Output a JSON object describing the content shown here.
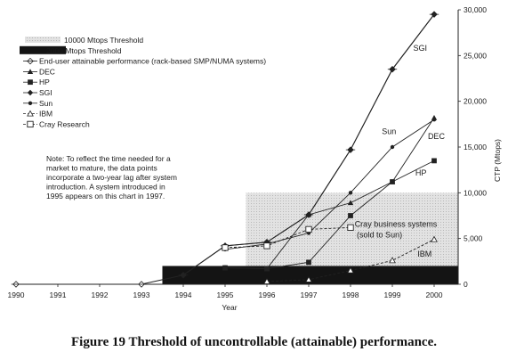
{
  "caption": "Figure 19 Threshold of uncontrollable (attainable) performance.",
  "chart_data": {
    "type": "line",
    "title": "",
    "xlabel": "Year",
    "ylabel": "CTP (Mtops)",
    "x_ticks": [
      "1990",
      "1991",
      "1992",
      "1993",
      "1994",
      "1995",
      "1996",
      "1997",
      "1998",
      "1999",
      "2000"
    ],
    "y_ticks": [
      "0",
      "5,000",
      "10,000",
      "15,000",
      "20,000",
      "25,000",
      "30,000"
    ],
    "xlim": [
      1990,
      2000.6
    ],
    "ylim": [
      0,
      30000
    ],
    "legend_position": "top-left",
    "legend_items": [
      "10000 Mtops Threshold",
      "2000 Mtops Threshold",
      "End-user attainable performance (rack-based SMP/NUMA systems)",
      "DEC",
      "HP",
      "SGI",
      "Sun",
      "IBM",
      "Cray Research"
    ],
    "thresholds": [
      {
        "name": "10000 Mtops Threshold",
        "from_x": 1995.5,
        "to_x": 2000.6,
        "value": 10000
      },
      {
        "name": "2000 Mtops Threshold",
        "from_x": 1993.5,
        "to_x": 2000.6,
        "value": 2000
      }
    ],
    "series": [
      {
        "name": "End-user attainable performance (rack-based SMP/NUMA systems)",
        "marker": "cross-diamond",
        "x": [
          1990,
          1993,
          1994,
          1995,
          1996,
          1997,
          1998,
          1999,
          2000
        ],
        "y": [
          0,
          0,
          1000,
          4200,
          4600,
          7600,
          14700,
          23500,
          29500
        ]
      },
      {
        "name": "DEC",
        "marker": "triangle-filled",
        "x": [
          1995,
          1996,
          1997,
          1998,
          1999,
          2000
        ],
        "y": [
          1800,
          1700,
          7600,
          8900,
          11200,
          18200
        ]
      },
      {
        "name": "HP",
        "marker": "square-filled",
        "x": [
          1995,
          1996,
          1997,
          1998,
          1999,
          2000
        ],
        "y": [
          1800,
          1700,
          2400,
          7500,
          11200,
          13500
        ]
      },
      {
        "name": "SGI",
        "marker": "diamond-filled",
        "x": [
          1994,
          1995,
          1996,
          1997,
          1998,
          1999,
          2000
        ],
        "y": [
          1000,
          4200,
          4600,
          7600,
          14700,
          23500,
          29500
        ]
      },
      {
        "name": "Sun",
        "marker": "dot",
        "x": [
          1995,
          1996,
          1997,
          1998,
          1999,
          2000
        ],
        "y": [
          3800,
          4400,
          5600,
          10000,
          15000,
          18000
        ]
      },
      {
        "name": "IBM",
        "marker": "triangle-open",
        "x": [
          1996,
          1997,
          1998,
          1999,
          2000
        ],
        "y": [
          300,
          500,
          1500,
          2600,
          4900
        ]
      },
      {
        "name": "Cray Research",
        "marker": "square-open",
        "x": [
          1995,
          1996,
          1997,
          1998
        ],
        "y": [
          4000,
          4200,
          6000,
          6200
        ]
      }
    ],
    "annotations": [
      {
        "text": "SGI",
        "x": 1999.5,
        "y": 25500
      },
      {
        "text": "Sun",
        "x": 1998.75,
        "y": 16400
      },
      {
        "text": "DEC",
        "x": 1999.85,
        "y": 15900
      },
      {
        "text": "HP",
        "x": 1999.55,
        "y": 11900
      },
      {
        "text": "IBM",
        "x": 1999.6,
        "y": 3000
      },
      {
        "text": "Cray business systems",
        "x": 1998.1,
        "y": 6300
      },
      {
        "text": "(sold to Sun)",
        "x": 1998.15,
        "y": 5100
      }
    ],
    "note": [
      "Note:  To reflect the time needed for a",
      "market to mature, the data points",
      "incorporate a two-year lag after system",
      "introduction.  A system introduced in",
      "1995 appears on this chart in 1997."
    ]
  }
}
